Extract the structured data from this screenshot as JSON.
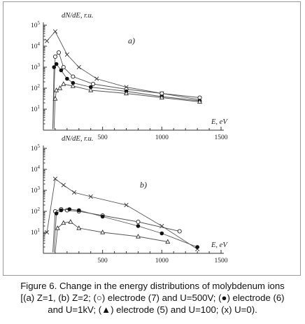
{
  "caption": {
    "line1": "Figure 6. Change in the energy distributions of molybdenum ions",
    "line2": "[(a) Z=1, (b) Z=2; (○) electrode (7) and U=500V; (●) electrode (6)",
    "line3": "and U=1kV; (▲) electrode (5) and U=100; (x) U=0)."
  },
  "chart_data": [
    {
      "type": "line",
      "panel_label": "a)",
      "ylabel": "dN/dE, r.u.",
      "xlabel": "E, eV",
      "xlim": [
        0,
        1500
      ],
      "ylim_log": [
        0,
        5
      ],
      "yscale": "log",
      "x_ticks": [
        500,
        1000,
        1500
      ],
      "y_ticks": [
        "10^1",
        "10^2",
        "10^3",
        "10^4",
        "10^5"
      ],
      "series": [
        {
          "marker": "x",
          "x": [
            30,
            100,
            200,
            300,
            450,
            700,
            1000,
            1320
          ],
          "y_log": [
            4.25,
            4.7,
            3.6,
            3.0,
            2.45,
            2.05,
            1.75,
            1.45
          ]
        },
        {
          "marker": "o",
          "x": [
            80,
            100,
            130,
            170,
            250,
            420,
            700,
            1000,
            1320
          ],
          "y_log": [
            0.05,
            3.5,
            3.7,
            3.0,
            2.55,
            2.2,
            1.95,
            1.75,
            1.55
          ]
        },
        {
          "marker": "filled-circle",
          "x": [
            80,
            90,
            110,
            150,
            200,
            250,
            400,
            700,
            1000,
            1320
          ],
          "y_log": [
            0.05,
            3.0,
            3.15,
            2.85,
            2.45,
            2.25,
            2.05,
            1.85,
            1.6,
            1.4
          ]
        },
        {
          "marker": "triangle",
          "x": [
            90,
            100,
            110,
            140,
            170,
            250,
            400,
            700,
            1000,
            1320
          ],
          "y_log": [
            0.05,
            1.5,
            1.9,
            2.0,
            2.2,
            2.1,
            1.9,
            1.75,
            1.55,
            1.35
          ]
        }
      ]
    },
    {
      "type": "line",
      "panel_label": "b)",
      "ylabel": "dN/dE, r.u.",
      "xlabel": "E, eV",
      "xlim": [
        0,
        1500
      ],
      "ylim_log": [
        0,
        5
      ],
      "yscale": "log",
      "x_ticks": [
        500,
        1000,
        1500
      ],
      "y_ticks": [
        "10^1",
        "10^2",
        "10^3",
        "10^4",
        "10^5"
      ],
      "series": [
        {
          "marker": "x",
          "x": [
            30,
            100,
            170,
            260,
            400,
            700,
            1000,
            1300
          ],
          "y_log": [
            1.0,
            3.55,
            3.25,
            2.9,
            2.7,
            2.3,
            1.3,
            0.2
          ]
        },
        {
          "marker": "o",
          "x": [
            80,
            100,
            150,
            200,
            300,
            500,
            800,
            1150
          ],
          "y_log": [
            0.05,
            2.0,
            2.1,
            2.05,
            2.0,
            1.8,
            1.5,
            1.05
          ]
        },
        {
          "marker": "filled-circle",
          "x": [
            90,
            110,
            150,
            220,
            300,
            500,
            800,
            1000,
            1300
          ],
          "y_log": [
            0.05,
            1.9,
            2.05,
            2.1,
            2.05,
            1.75,
            1.3,
            0.95,
            0.3
          ]
        },
        {
          "marker": "triangle",
          "x": [
            100,
            120,
            170,
            230,
            300,
            500,
            800,
            1050
          ],
          "y_log": [
            0.05,
            1.2,
            1.45,
            1.5,
            1.2,
            1.0,
            0.8,
            0.55
          ]
        }
      ]
    }
  ]
}
